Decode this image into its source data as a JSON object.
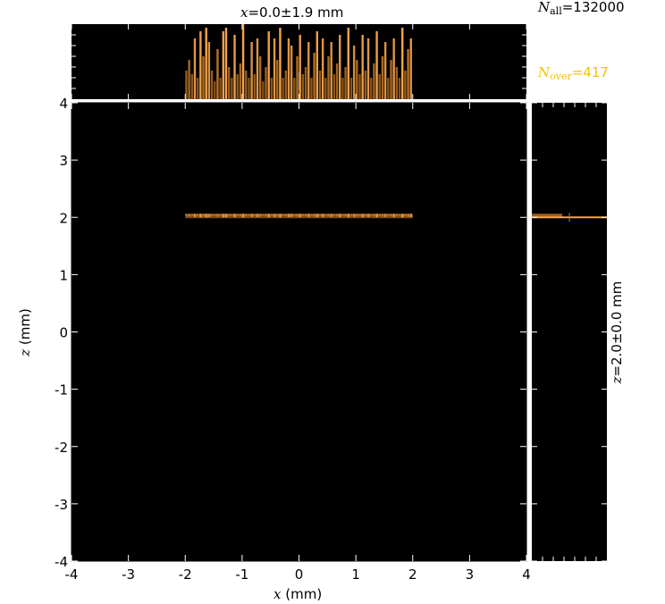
{
  "header": {
    "x_title_var": "x",
    "x_title_rest": "=0.0±1.9 mm",
    "n_all_var": "N",
    "n_all_sub": "all",
    "n_all_rest": "=132000",
    "n_over_var": "N",
    "n_over_sub": "over",
    "n_over_rest": "=417"
  },
  "side": {
    "z_title_var": "z",
    "z_title_rest": "=2.0±0.0 mm"
  },
  "colors": {
    "background": "#000000",
    "beam": "#e08a2c",
    "beam_light": "#f5a54a",
    "n_over": "#f2c200"
  },
  "chart_data": {
    "type": "heatmap",
    "xlabel_var": "x",
    "xlabel_unit": " (mm)",
    "ylabel_var": "z",
    "ylabel_unit": " (mm)",
    "xlim": [
      -4,
      4
    ],
    "ylim": [
      -4,
      4
    ],
    "xticks": [
      "-4",
      "-3",
      "-2",
      "-1",
      "0",
      "1",
      "2",
      "3",
      "4"
    ],
    "yticks": [
      "-4",
      "-3",
      "-2",
      "-1",
      "0",
      "1",
      "2",
      "3",
      "4"
    ],
    "grid": false,
    "beam": {
      "x_min": -2.0,
      "x_max": 2.0,
      "z": 2.0,
      "x_mean": 0.0,
      "x_rms": 1.9,
      "z_mean": 2.0,
      "z_rms": 0.0
    },
    "x_histogram": {
      "x_range": [
        -2.0,
        2.0
      ],
      "relative_heights": [
        0.4,
        0.55,
        0.35,
        0.85,
        0.3,
        0.95,
        0.6,
        1.0,
        0.8,
        0.4,
        0.25,
        0.7,
        0.3,
        0.95,
        1.0,
        0.45,
        0.3,
        0.9,
        0.35,
        0.5,
        1.05,
        0.4,
        0.3,
        0.8,
        0.35,
        0.85,
        0.6,
        0.25,
        0.45,
        0.95,
        0.3,
        0.85,
        0.55,
        1.0,
        0.3,
        0.4,
        0.85,
        0.75,
        0.3,
        0.6,
        0.9,
        0.35,
        0.45,
        0.8,
        0.3,
        0.65,
        0.95,
        0.4,
        0.85,
        0.3,
        0.6,
        0.8,
        0.35,
        0.5,
        0.9,
        0.3,
        0.45,
        1.0,
        0.3,
        0.75,
        0.55,
        0.35,
        0.9,
        0.4,
        0.85,
        0.3,
        0.5,
        0.95,
        0.35,
        0.6,
        0.8,
        0.3,
        0.55,
        0.85,
        0.45,
        0.3,
        1.0,
        0.4,
        0.7,
        0.85
      ]
    },
    "z_histogram": {
      "z_center": 2.0,
      "width": 0.05
    }
  }
}
